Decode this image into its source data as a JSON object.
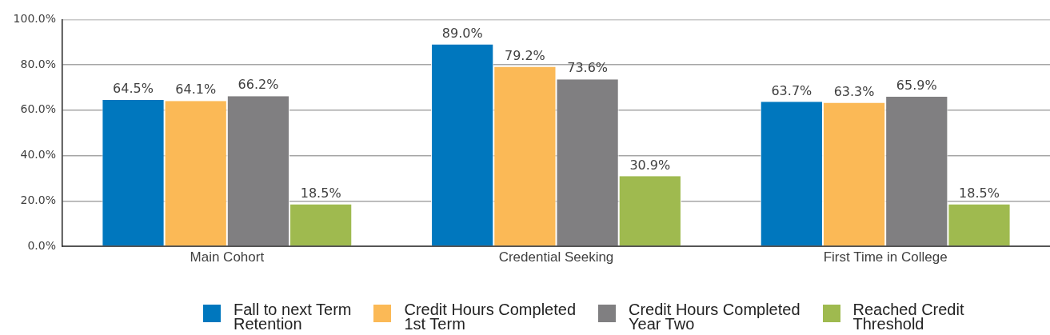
{
  "chart_data": {
    "type": "bar",
    "categories": [
      "Main Cohort",
      "Credential Seeking",
      "First Time in College"
    ],
    "series": [
      {
        "name": "Fall to next Term Retention",
        "color": "#0077be",
        "values": [
          64.5,
          89.0,
          63.7
        ],
        "value_labels": [
          "64.5%",
          "89.0%",
          "63.7%"
        ]
      },
      {
        "name": "Credit Hours Completed 1st Term",
        "color": "#fbb956",
        "values": [
          64.1,
          79.2,
          63.3
        ],
        "value_labels": [
          "64.1%",
          "79.2%",
          "63.3%"
        ]
      },
      {
        "name": "Credit Hours Completed Year Two",
        "color": "#807f81",
        "values": [
          66.2,
          73.6,
          65.9
        ],
        "value_labels": [
          "66.2%",
          "73.6%",
          "65.9%"
        ]
      },
      {
        "name": "Reached Credit Threshold",
        "color": "#9fba4f",
        "values": [
          18.5,
          30.9,
          18.5
        ],
        "value_labels": [
          "18.5%",
          "30.9%",
          "18.5%"
        ]
      }
    ],
    "ylim": [
      0,
      100
    ],
    "yticks": [
      {
        "value": 0,
        "label": "0.0%"
      },
      {
        "value": 20,
        "label": "20.0%"
      },
      {
        "value": 40,
        "label": "40.0%"
      },
      {
        "value": 60,
        "label": "60.0%"
      },
      {
        "value": 80,
        "label": "80.0%"
      },
      {
        "value": 100,
        "label": "100.0%"
      }
    ],
    "grid": "y",
    "legend": "bottom"
  }
}
